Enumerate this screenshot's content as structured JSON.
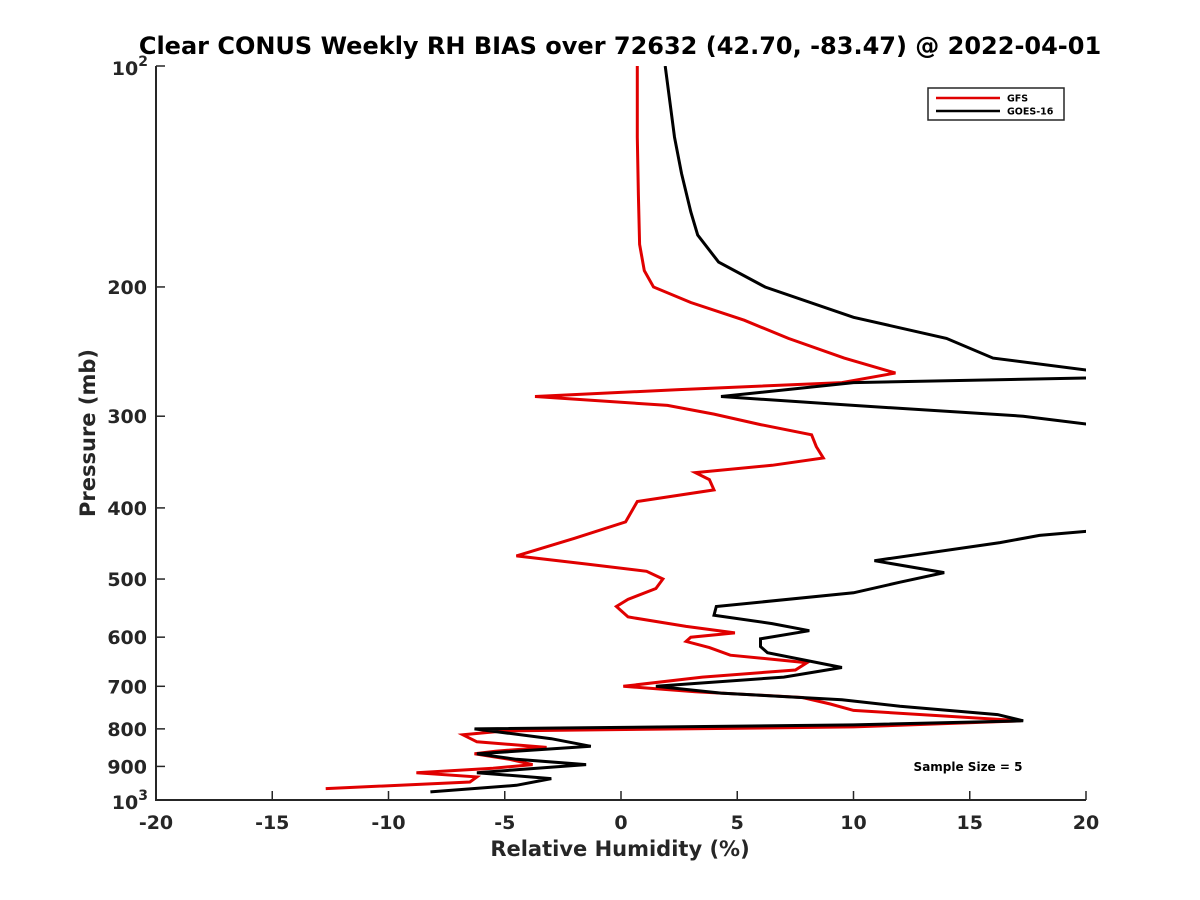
{
  "chart_data": {
    "type": "line",
    "title": "Clear CONUS Weekly RH BIAS over 72632 (42.70, -83.47) @ 2022-04-01",
    "xlabel": "Relative Humidity (%)",
    "ylabel": "Pressure (mb)",
    "xlim": [
      -20,
      20
    ],
    "ylim": [
      100,
      1000
    ],
    "yscale": "log",
    "y_reversed": true,
    "grid": false,
    "legend_position": "top-right",
    "x_ticks": [
      "-20",
      "-15",
      "-10",
      "-5",
      "0",
      "5",
      "10",
      "15",
      "20"
    ],
    "x_tick_values": [
      -20,
      -15,
      -10,
      -5,
      0,
      5,
      10,
      15,
      20
    ],
    "y_ticks": [
      {
        "value": 100,
        "base": "10",
        "exp": "2"
      },
      {
        "value": 200,
        "label": "200"
      },
      {
        "value": 300,
        "label": "300"
      },
      {
        "value": 400,
        "label": "400"
      },
      {
        "value": 500,
        "label": "500"
      },
      {
        "value": 600,
        "label": "600"
      },
      {
        "value": 700,
        "label": "700"
      },
      {
        "value": 800,
        "label": "800"
      },
      {
        "value": 900,
        "label": "900"
      },
      {
        "value": 1000,
        "base": "10",
        "exp": "3"
      }
    ],
    "annotation": "Sample Size = 5",
    "series": [
      {
        "name": "GFS",
        "color": "#e00000",
        "points": [
          [
            0.7,
            100
          ],
          [
            0.7,
            125
          ],
          [
            0.75,
            150
          ],
          [
            0.8,
            175
          ],
          [
            1.0,
            190
          ],
          [
            1.4,
            200
          ],
          [
            3.0,
            210
          ],
          [
            5.3,
            222
          ],
          [
            7.2,
            235
          ],
          [
            9.6,
            250
          ],
          [
            11.8,
            262
          ],
          [
            9.5,
            270
          ],
          [
            2.5,
            276
          ],
          [
            -3.7,
            282
          ],
          [
            2.0,
            290
          ],
          [
            4.0,
            298
          ],
          [
            6.0,
            308
          ],
          [
            8.2,
            318
          ],
          [
            8.4,
            330
          ],
          [
            8.7,
            342
          ],
          [
            6.5,
            350
          ],
          [
            3.2,
            358
          ],
          [
            3.8,
            366
          ],
          [
            4.0,
            378
          ],
          [
            0.7,
            392
          ],
          [
            0.2,
            418
          ],
          [
            -2.0,
            440
          ],
          [
            -4.5,
            465
          ],
          [
            -1.5,
            477
          ],
          [
            1.1,
            488
          ],
          [
            1.8,
            500
          ],
          [
            1.5,
            515
          ],
          [
            0.3,
            533
          ],
          [
            -0.2,
            545
          ],
          [
            0.3,
            563
          ],
          [
            2.8,
            580
          ],
          [
            4.9,
            592
          ],
          [
            3.0,
            600
          ],
          [
            2.8,
            608
          ],
          [
            3.8,
            620
          ],
          [
            4.7,
            635
          ],
          [
            8.0,
            650
          ],
          [
            7.5,
            665
          ],
          [
            3.5,
            680
          ],
          [
            0.1,
            700
          ],
          [
            3.2,
            712
          ],
          [
            7.8,
            725
          ],
          [
            9.0,
            740
          ],
          [
            10.0,
            755
          ],
          [
            17.2,
            780
          ],
          [
            10.0,
            795
          ],
          [
            -5.0,
            805
          ],
          [
            -6.8,
            815
          ],
          [
            -6.2,
            833
          ],
          [
            -3.2,
            848
          ],
          [
            -5.4,
            858
          ],
          [
            -6.3,
            865
          ],
          [
            -4.8,
            880
          ],
          [
            -3.8,
            895
          ],
          [
            -5.5,
            905
          ],
          [
            -8.8,
            918
          ],
          [
            -6.2,
            930
          ],
          [
            -6.5,
            945
          ],
          [
            -12.7,
            965
          ]
        ]
      },
      {
        "name": "GOES-16",
        "color": "#000000",
        "points": [
          [
            1.9,
            100
          ],
          [
            2.3,
            125
          ],
          [
            2.6,
            140
          ],
          [
            3.0,
            158
          ],
          [
            3.3,
            170
          ],
          [
            4.2,
            185
          ],
          [
            6.2,
            200
          ],
          [
            10.0,
            220
          ],
          [
            14.0,
            235
          ],
          [
            16.0,
            250
          ],
          [
            20.2,
            260
          ],
          [
            20.2,
            266
          ],
          [
            10.0,
            270
          ],
          [
            4.3,
            282
          ],
          [
            10.0,
            290
          ],
          [
            17.3,
            300
          ],
          [
            20.2,
            308
          ],
          [
            20.2,
            430
          ],
          [
            18.0,
            436
          ],
          [
            16.3,
            446
          ],
          [
            10.9,
            472
          ],
          [
            13.9,
            490
          ],
          [
            12.0,
            505
          ],
          [
            10.0,
            522
          ],
          [
            4.1,
            545
          ],
          [
            4.0,
            560
          ],
          [
            6.5,
            575
          ],
          [
            8.1,
            588
          ],
          [
            6.0,
            603
          ],
          [
            6.0,
            618
          ],
          [
            6.3,
            630
          ],
          [
            9.5,
            660
          ],
          [
            7.0,
            680
          ],
          [
            1.5,
            700
          ],
          [
            4.3,
            715
          ],
          [
            9.5,
            730
          ],
          [
            12.0,
            745
          ],
          [
            16.2,
            765
          ],
          [
            17.3,
            780
          ],
          [
            10.0,
            790
          ],
          [
            -6.3,
            800
          ],
          [
            -3.0,
            825
          ],
          [
            -1.3,
            845
          ],
          [
            -6.2,
            865
          ],
          [
            -4.5,
            880
          ],
          [
            -1.5,
            895
          ],
          [
            -6.2,
            918
          ],
          [
            -3.0,
            935
          ],
          [
            -4.5,
            955
          ],
          [
            -8.2,
            975
          ]
        ]
      }
    ]
  }
}
